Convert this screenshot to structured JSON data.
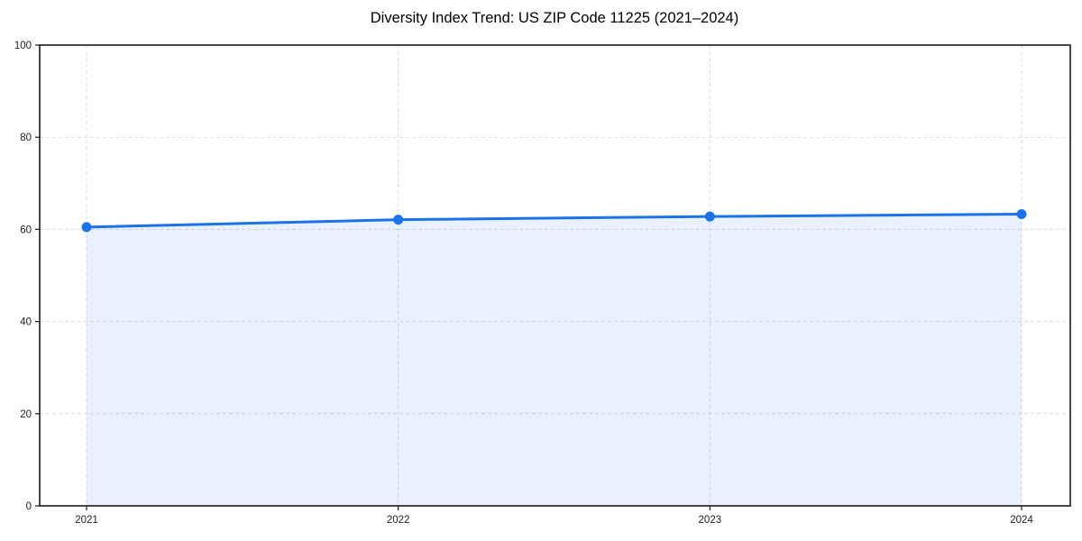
{
  "page": {
    "background": "#ffffff"
  },
  "chart_data": {
    "type": "area",
    "title": "Diversity Index Trend: US ZIP Code 11225 (2021–2024)",
    "categories": [
      "2021",
      "2022",
      "2023",
      "2024"
    ],
    "series": [
      {
        "name": "Diversity Index",
        "values": [
          60.5,
          62.1,
          62.8,
          63.3
        ]
      }
    ],
    "xlabel": "",
    "ylabel": "",
    "ylim": [
      0,
      100
    ],
    "yticks": [
      0,
      20,
      40,
      60,
      80,
      100
    ],
    "grid": true,
    "grid_style": "dashed",
    "legend_position": "none",
    "colors": {
      "line": "#1a73e8",
      "marker": "#1a73e8",
      "fill": "#1a73e8",
      "fill_opacity": 0.1,
      "grid": "#dcdcdc",
      "axis": "#1a1a1a",
      "tick_label": "#222222",
      "title": "#000000"
    }
  }
}
